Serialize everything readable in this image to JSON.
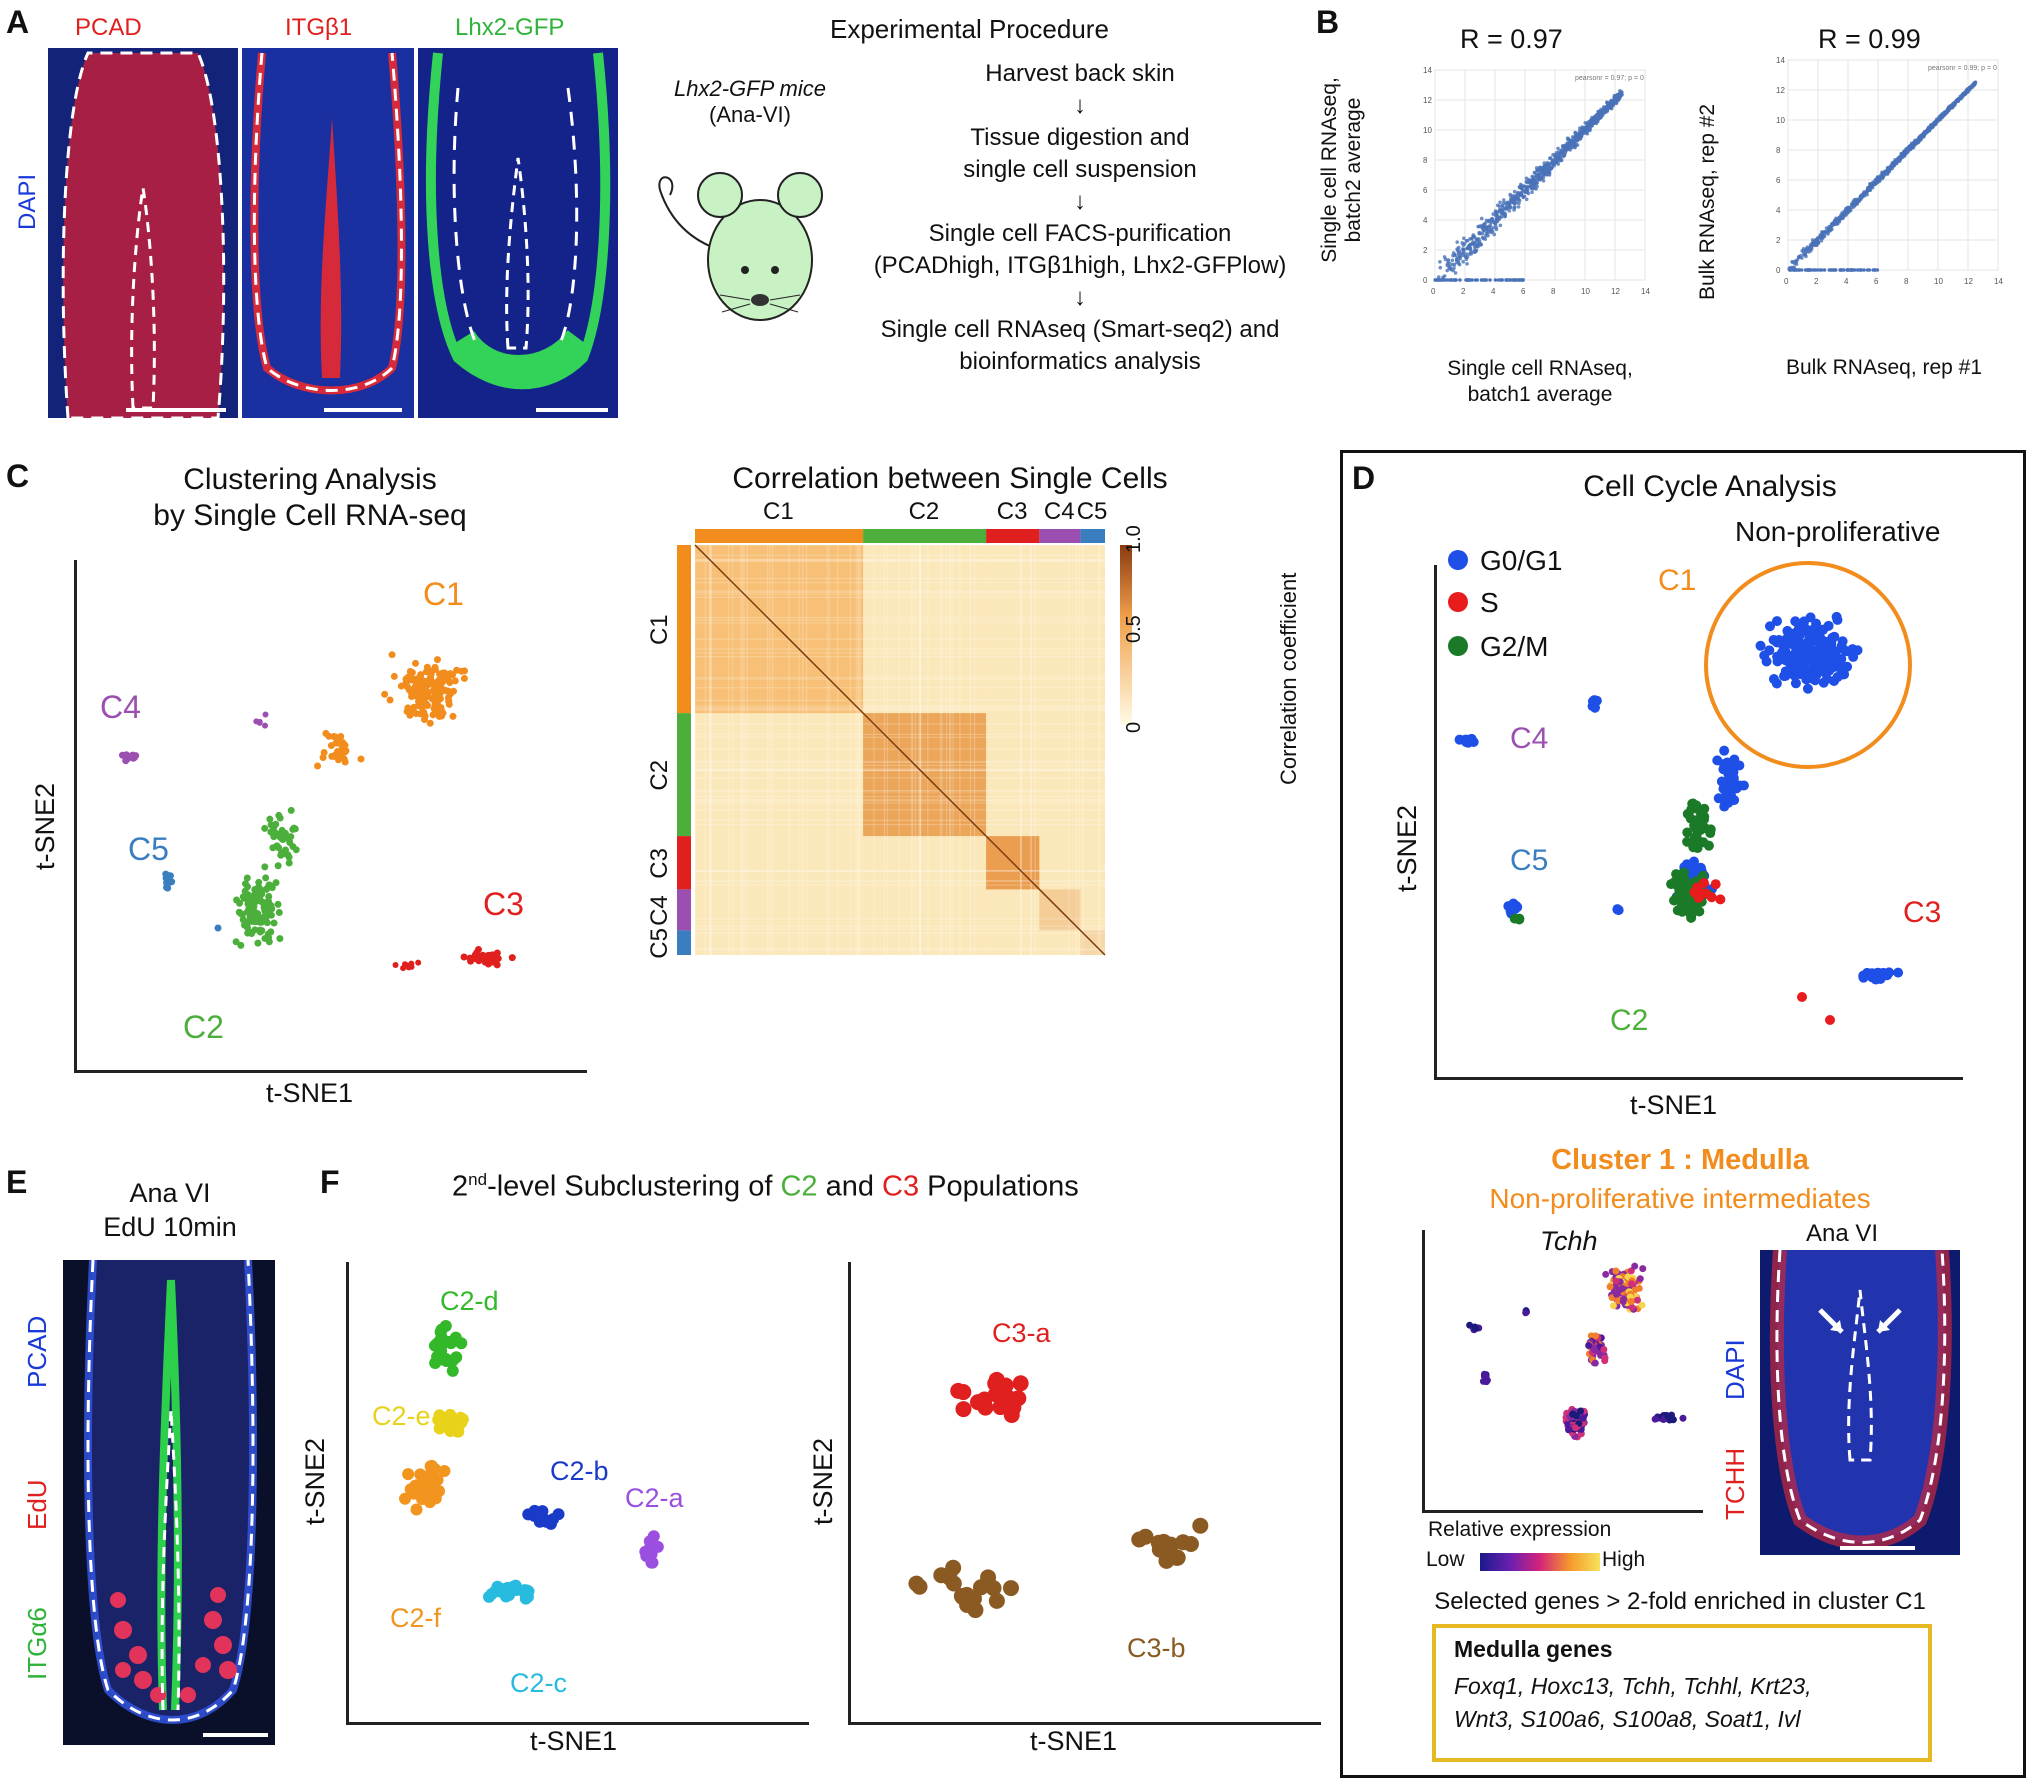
{
  "panels": {
    "A": "A",
    "B": "B",
    "C": "C",
    "D": "D",
    "E": "E",
    "F": "F"
  },
  "panelA": {
    "stains": [
      "PCAD",
      "ITGβ1",
      "Lhx2-GFP"
    ],
    "dapi": "DAPI",
    "mouse_line1": "Lhx2-GFP mice",
    "mouse_line2": "(Ana-VI)",
    "procedure_title": "Experimental Procedure",
    "steps": [
      "Harvest back skin",
      "Tissue digestion and",
      "single cell suspension",
      "Single cell FACS-purification",
      "(PCADhigh, ITGβ1high, Lhx2-GFPlow)",
      "Single cell RNAseq (Smart-seq2) and",
      "bioinformatics analysis"
    ]
  },
  "panelB": {
    "left": {
      "r": "R = 0.97",
      "ylabel1": "Single cell RNAseq,",
      "ylabel2": "batch2 average",
      "xlabel1": "Single cell RNAseq,",
      "xlabel2": "batch1 average",
      "note": "pearsonr = 0.97; p = 0"
    },
    "right": {
      "r": "R = 0.99",
      "ylabel": "Bulk RNAseq, rep #2",
      "xlabel": "Bulk RNAseq, rep #1",
      "note": "pearsonr = 0.99; p = 0"
    },
    "ticks": [
      "0",
      "2",
      "4",
      "6",
      "8",
      "10",
      "12",
      "14"
    ]
  },
  "panelC": {
    "title1": "Clustering Analysis",
    "title2": "by Single Cell RNA-seq",
    "xlabel": "t-SNE1",
    "ylabel": "t-SNE2",
    "clusters": [
      "C1",
      "C2",
      "C3",
      "C4",
      "C5"
    ],
    "corr_title": "Correlation between Single Cells",
    "colorbar_label": "Correlation coefficient",
    "colorbar_ticks": [
      "1.0",
      "0.5",
      "0"
    ]
  },
  "panelD": {
    "title": "Cell Cycle Analysis",
    "nonprolif": "Non-proliferative",
    "legend": [
      "G0/G1",
      "S",
      "G2/M"
    ],
    "xlabel": "t-SNE1",
    "ylabel": "t-SNE2",
    "cluster_title": "Cluster 1 : Medulla",
    "cluster_sub": "Non-proliferative intermediates",
    "gene": "Tchh",
    "ana": "Ana VI",
    "dapi": "DAPI",
    "tchh": "TCHH",
    "rel_expr": "Relative expression",
    "low": "Low",
    "high": "High",
    "selected": "Selected genes > 2-fold enriched in cluster C1",
    "medulla_title": "Medulla genes",
    "medulla_line1": "Foxq1, Hoxc13, Tchh, Tchhl, Krt23,",
    "medulla_line2": "Wnt3, S100a6, S100a8, Soat1, Ivl"
  },
  "panelE": {
    "line1": "Ana VI",
    "line2": "EdU 10min",
    "stains": [
      "PCAD",
      "EdU",
      "ITGα6"
    ]
  },
  "panelF": {
    "title_pre": "2",
    "title_sup": "nd",
    "title_mid": "-level Subclustering of ",
    "c2": "C2",
    "and": " and ",
    "c3": "C3",
    "title_post": " Populations",
    "xlabel": "t-SNE1",
    "ylabel": "t-SNE2",
    "sub_c2": [
      "C2-a",
      "C2-b",
      "C2-c",
      "C2-d",
      "C2-e",
      "C2-f"
    ],
    "sub_c3": [
      "C3-a",
      "C3-b"
    ]
  },
  "colors": {
    "C1": "#f28c1c",
    "C2": "#4caf3c",
    "C3": "#e0201e",
    "C4": "#9b4fb0",
    "C5": "#3a7ec0",
    "G0G1": "#1e4fe6",
    "S": "#e81c1c",
    "G2M": "#1a7a28",
    "gold": "#e6b822"
  }
}
